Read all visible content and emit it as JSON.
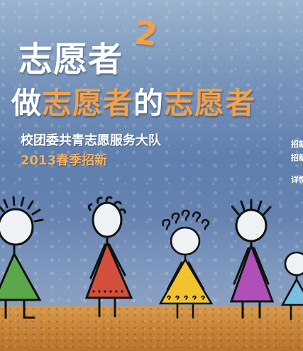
{
  "poster": {
    "title_main": "志愿者",
    "title_superscript": "2",
    "title_line2_prefix": "做",
    "title_line2_word1": "志愿者",
    "title_line2_mid": "的",
    "title_line2_word2": "志愿者",
    "subtitle": "校团委共青志愿服务大队",
    "recruitment": "2013春季招新",
    "side_text": [
      "招新",
      "招新",
      "详情"
    ]
  },
  "colors": {
    "sky_top": "#9cb3cf",
    "sky_mid": "#5f7fae",
    "accent_orange": "#f2a14a",
    "ground": "#c9843a",
    "figure_green": "#5ba84a",
    "figure_red": "#d2503c",
    "figure_yellow": "#f1c32f",
    "figure_purple": "#b04fb8",
    "figure_blue": "#78bfe0"
  }
}
